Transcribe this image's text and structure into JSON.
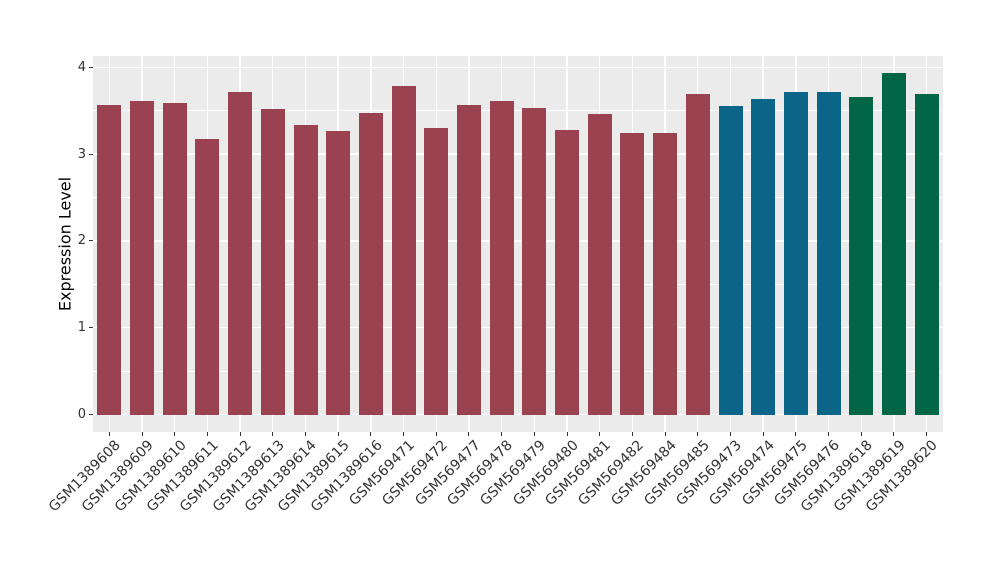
{
  "figure": {
    "background_color": "#FFFFFF",
    "panel_background_color": "#EBEBEB",
    "gridline_color": "#FFFFFF",
    "axis_text_color": "#333333",
    "axis_title_color": "#000000"
  },
  "chart_data": {
    "type": "bar",
    "title": "",
    "xlabel": "",
    "ylabel": "Expression Level",
    "ylim": [
      -0.2,
      4.13
    ],
    "yticks": [
      0,
      1,
      2,
      3,
      4
    ],
    "yticks_minor": [
      0.5,
      1.5,
      2.5,
      3.5
    ],
    "grid": "major-and-minor-white-on-gray",
    "legend": "none",
    "categories": [
      "GSM1389608",
      "GSM1389609",
      "GSM1389610",
      "GSM1389611",
      "GSM1389612",
      "GSM1389613",
      "GSM1389614",
      "GSM1389615",
      "GSM1389616",
      "GSM569471",
      "GSM569472",
      "GSM569477",
      "GSM569478",
      "GSM569479",
      "GSM569480",
      "GSM569481",
      "GSM569482",
      "GSM569484",
      "GSM569485",
      "GSM569473",
      "GSM569474",
      "GSM569475",
      "GSM569476",
      "GSM1389618",
      "GSM1389619",
      "GSM1389620"
    ],
    "values": [
      3.56,
      3.61,
      3.59,
      3.17,
      3.71,
      3.52,
      3.33,
      3.27,
      3.47,
      3.78,
      3.3,
      3.57,
      3.61,
      3.53,
      3.28,
      3.46,
      3.24,
      3.24,
      3.69,
      3.55,
      3.63,
      3.71,
      3.71,
      3.66,
      3.93,
      3.69
    ],
    "bar_colors": [
      "#9A4250",
      "#9A4250",
      "#9A4250",
      "#9A4250",
      "#9A4250",
      "#9A4250",
      "#9A4250",
      "#9A4250",
      "#9A4250",
      "#9A4250",
      "#9A4250",
      "#9A4250",
      "#9A4250",
      "#9A4250",
      "#9A4250",
      "#9A4250",
      "#9A4250",
      "#9A4250",
      "#9A4250",
      "#0B6588",
      "#0B6588",
      "#0B6588",
      "#0B6588",
      "#006646",
      "#006646",
      "#006646"
    ],
    "palette": {
      "maroon": "#9A4250",
      "blue": "#0B6588",
      "green": "#006646"
    }
  }
}
